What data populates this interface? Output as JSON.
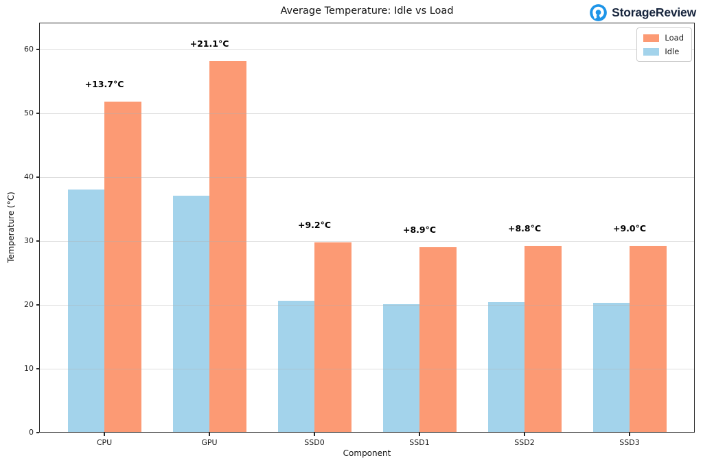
{
  "header": {
    "brand": "StorageReview",
    "brand_color": "#16243c",
    "logo_color": "#1e95e8"
  },
  "legend": {
    "items": [
      {
        "label": "Load",
        "color": "#fc9a74"
      },
      {
        "label": "Idle",
        "color": "#a3d3eb"
      }
    ]
  },
  "chart_data": {
    "type": "bar",
    "title": "Average Temperature: Idle vs Load",
    "xlabel": "Component",
    "ylabel": "Temperature (°C)",
    "categories": [
      "CPU",
      "GPU",
      "SSD0",
      "SSD1",
      "SSD2",
      "SSD3"
    ],
    "series": [
      {
        "name": "Idle",
        "color": "#a3d3eb",
        "values": [
          38.1,
          37.1,
          20.6,
          20.1,
          20.4,
          20.3
        ]
      },
      {
        "name": "Load",
        "color": "#fc9a74",
        "values": [
          51.8,
          58.2,
          29.8,
          29.0,
          29.2,
          29.3
        ]
      }
    ],
    "annotations": [
      "+13.7°C",
      "+21.1°C",
      "+9.2°C",
      "+8.9°C",
      "+8.8°C",
      "+9.0°C"
    ],
    "ylim": [
      0,
      64.2
    ],
    "yticks": [
      0,
      10,
      20,
      30,
      40,
      50,
      60
    ],
    "grid": true,
    "grid_above_bars": true,
    "legend_position": "upper right"
  }
}
